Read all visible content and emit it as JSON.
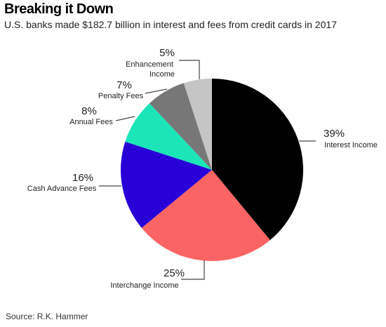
{
  "title": "Breaking it Down",
  "subtitle": "U.S. banks made $182.7 billion in interest and fees from credit cards in 2017",
  "source": "Source: R.K. Hammer",
  "chart_data": {
    "type": "pie",
    "title": "Breaking it Down",
    "slices": [
      {
        "label": "Interest Income",
        "value": 39,
        "value_label": "39%",
        "color": "#000000"
      },
      {
        "label": "Interchange Income",
        "value": 25,
        "value_label": "25%",
        "color": "#fa6464"
      },
      {
        "label": "Cash Advance Fees",
        "value": 16,
        "value_label": "16%",
        "color": "#2800d7"
      },
      {
        "label": "Annual Fees",
        "value": 8,
        "value_label": "8%",
        "color": "#1ce6b8"
      },
      {
        "label": "Penalty Fees",
        "value": 7,
        "value_label": "7%",
        "color": "#777777"
      },
      {
        "label": "Enhancement Income",
        "value": 5,
        "value_label": "5%",
        "color": "#c5c5c5"
      }
    ],
    "start": "12 o'clock, clockwise"
  }
}
